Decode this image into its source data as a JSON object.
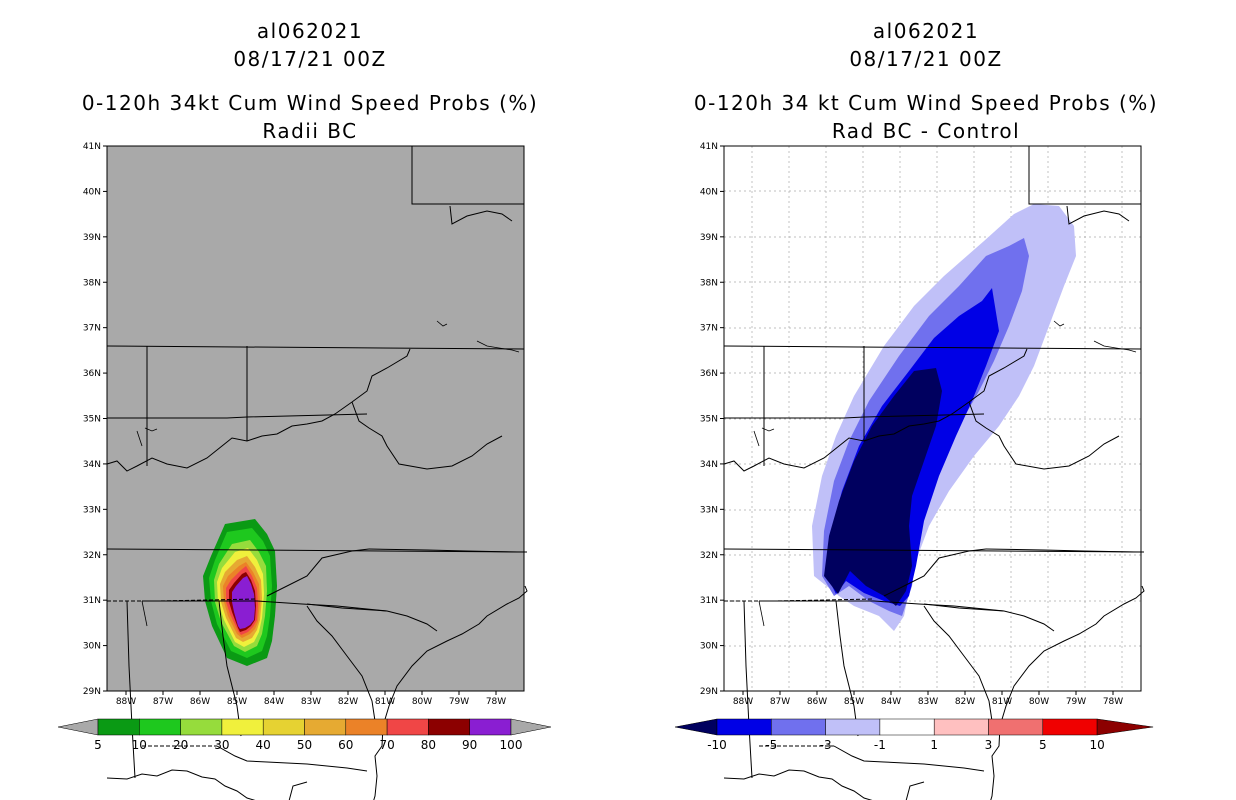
{
  "left_panel": {
    "storm_id": "al062021",
    "datetime": "08/17/21 00Z",
    "title": "0-120h 34kt Cum Wind Speed Probs (%)",
    "subtitle": "Radii BC",
    "background_color": "#a9a9a9",
    "colorbar": {
      "labels": [
        "5",
        "10",
        "20",
        "30",
        "40",
        "50",
        "60",
        "70",
        "80",
        "90",
        "100"
      ],
      "colors": [
        "#0a9a14",
        "#1ec81e",
        "#96dc3c",
        "#f0f03c",
        "#e6d232",
        "#e6aa32",
        "#eb8228",
        "#f04646",
        "#8c0000",
        "#8a1ed2"
      ],
      "end_color": "#a9a9a9"
    }
  },
  "right_panel": {
    "storm_id": "al062021",
    "datetime": "08/17/21 00Z",
    "title": "0-120h 34 kt Cum Wind Speed Probs (%)",
    "subtitle": "Rad BC - Control",
    "background_color": "#ffffff",
    "colorbar": {
      "labels": [
        "-10",
        "-5",
        "-3",
        "-1",
        "1",
        "3",
        "5",
        "10"
      ],
      "colors": [
        "#0000e6",
        "#7070ee",
        "#c0c0f8",
        "#ffffff",
        "#ffc0c0",
        "#f07070",
        "#f00000"
      ],
      "low_end_color": "#00005f",
      "high_end_color": "#8c0000"
    }
  },
  "axes": {
    "lat_labels": [
      "41N",
      "40N",
      "39N",
      "38N",
      "37N",
      "36N",
      "35N",
      "34N",
      "33N",
      "32N",
      "31N",
      "30N",
      "29N"
    ],
    "lon_labels": [
      "88W",
      "87W",
      "86W",
      "85W",
      "84W",
      "83W",
      "82W",
      "81W",
      "80W",
      "79W",
      "78W"
    ]
  }
}
